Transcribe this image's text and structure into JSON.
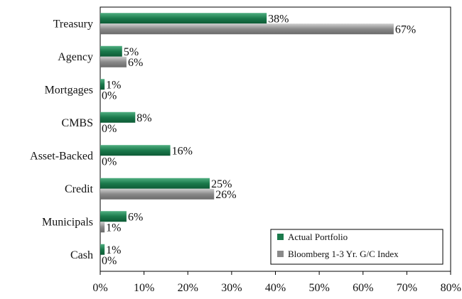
{
  "chart_data": {
    "type": "bar",
    "orientation": "horizontal",
    "categories": [
      "Treasury",
      "Agency",
      "Mortgages",
      "CMBS",
      "Asset-Backed",
      "Credit",
      "Municipals",
      "Cash"
    ],
    "series": [
      {
        "name": "Actual Portfolio",
        "color": "#1b7a4c",
        "values": [
          38,
          5,
          1,
          8,
          16,
          25,
          6,
          1
        ],
        "labels": [
          "38%",
          "5%",
          "1%",
          "8%",
          "16%",
          "25%",
          "6%",
          "1%"
        ]
      },
      {
        "name": "Bloomberg 1-3 Yr. G/C Index",
        "color": "#8a8a8a",
        "values": [
          67,
          6,
          0,
          0,
          0,
          26,
          1,
          0
        ],
        "labels": [
          "67%",
          "6%",
          "0%",
          "0%",
          "0%",
          "26%",
          "1%",
          "0%"
        ]
      }
    ],
    "xlim": [
      0,
      80
    ],
    "xticks": [
      "0%",
      "10%",
      "20%",
      "30%",
      "40%",
      "50%",
      "60%",
      "70%",
      "80%"
    ],
    "grid": false,
    "legend_position": "bottom-right"
  }
}
